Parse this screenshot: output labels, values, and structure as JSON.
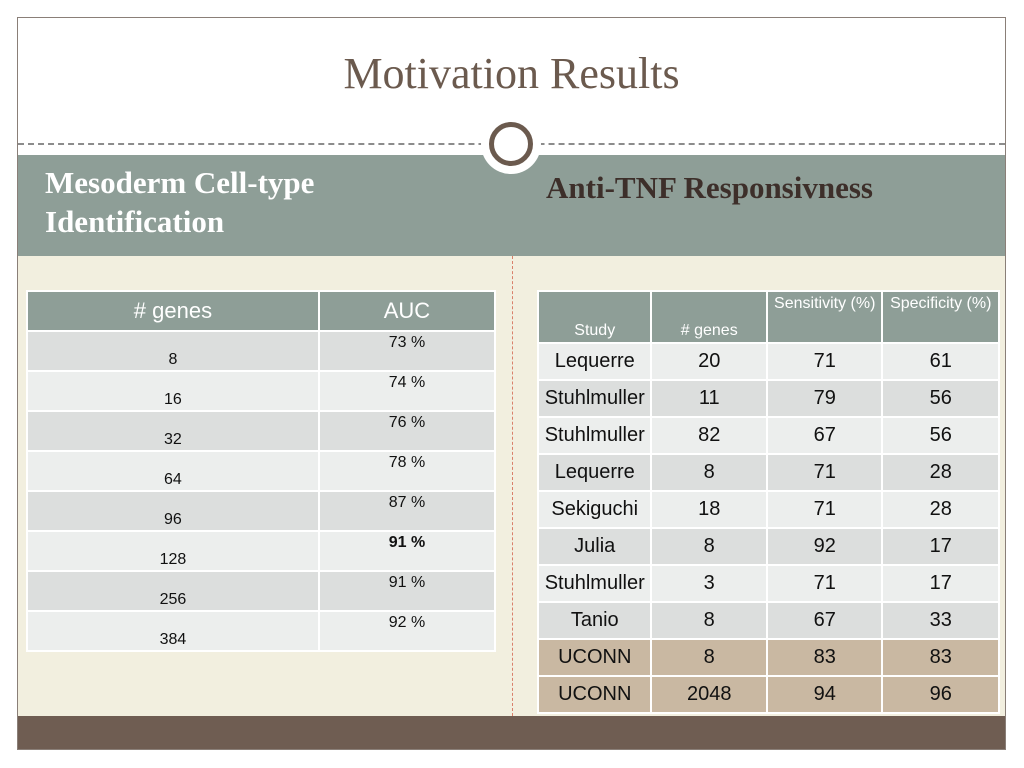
{
  "title": "Motivation Results",
  "left_heading": "Mesoderm Cell-type Identification",
  "right_heading": "Anti-TNF Responsivness",
  "left_table": {
    "headers": [
      "# genes",
      "AUC"
    ],
    "rows": [
      {
        "genes": "8",
        "auc": "73 %"
      },
      {
        "genes": "16",
        "auc": "74 %"
      },
      {
        "genes": "32",
        "auc": "76 %"
      },
      {
        "genes": "64",
        "auc": "78 %"
      },
      {
        "genes": "96",
        "auc": "87 %"
      },
      {
        "genes": "128",
        "auc": "91 %"
      },
      {
        "genes": "256",
        "auc": "91 %"
      },
      {
        "genes": "384",
        "auc": "92 %"
      }
    ]
  },
  "right_table": {
    "headers": [
      "Study",
      "# genes",
      "Sensitivity (%)",
      "Specificity (%)"
    ],
    "rows": [
      {
        "study": "Lequerre",
        "genes": "20",
        "sensitivity": "71",
        "specificity": "61"
      },
      {
        "study": "Stuhlmuller",
        "genes": "11",
        "sensitivity": "79",
        "specificity": "56"
      },
      {
        "study": "Stuhlmuller",
        "genes": "82",
        "sensitivity": "67",
        "specificity": "56"
      },
      {
        "study": "Lequerre",
        "genes": "8",
        "sensitivity": "71",
        "specificity": "28"
      },
      {
        "study": "Sekiguchi",
        "genes": "18",
        "sensitivity": "71",
        "specificity": "28"
      },
      {
        "study": "Julia",
        "genes": "8",
        "sensitivity": "92",
        "specificity": "17"
      },
      {
        "study": "Stuhlmuller",
        "genes": "3",
        "sensitivity": "71",
        "specificity": "17"
      },
      {
        "study": "Tanio",
        "genes": "8",
        "sensitivity": "67",
        "specificity": "33"
      },
      {
        "study": "UCONN",
        "genes": "8",
        "sensitivity": "83",
        "specificity": "83"
      },
      {
        "study": "UCONN",
        "genes": "2048",
        "sensitivity": "94",
        "specificity": "96"
      }
    ]
  },
  "colors": {
    "banner": "#8e9e97",
    "title_text": "#6b5a4e",
    "content_bg": "#f2efdf",
    "footer": "#6f5d52",
    "highlight_row": "#c9b8a2"
  }
}
